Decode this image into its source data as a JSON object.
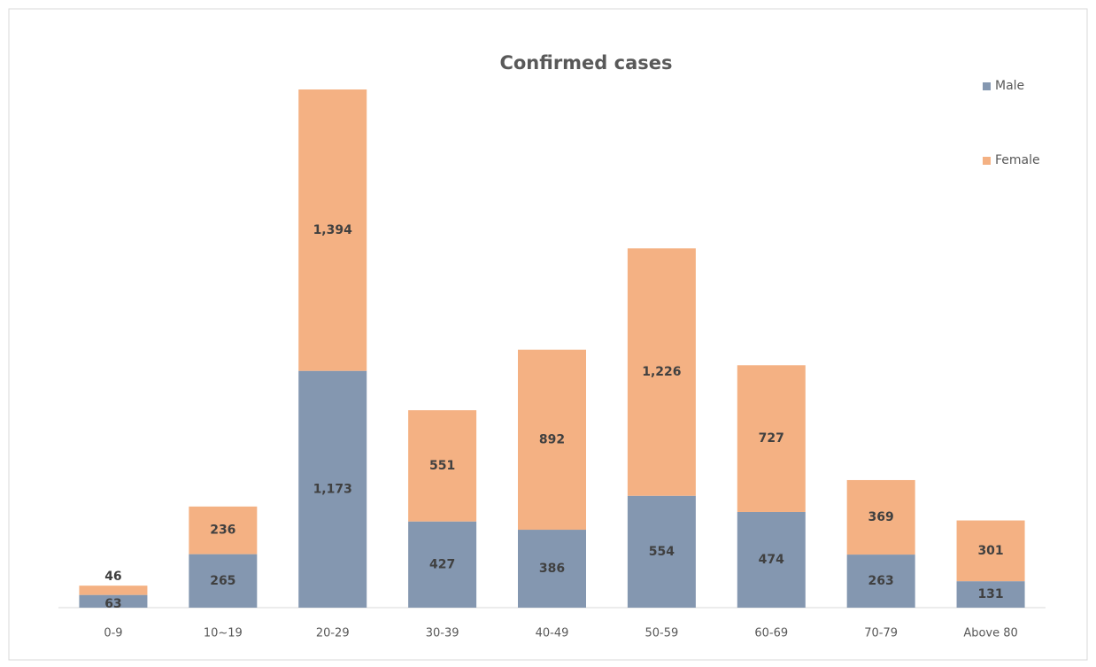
{
  "chart_data": {
    "type": "bar",
    "stacked": true,
    "title": "Confirmed cases",
    "categories": [
      "0-9",
      "10~19",
      "20-29",
      "30-39",
      "40-49",
      "50-59",
      "60-69",
      "70-79",
      "Above 80"
    ],
    "series": [
      {
        "name": "Male",
        "color": "#8497b0",
        "values": [
          63,
          265,
          1173,
          427,
          386,
          554,
          474,
          263,
          131
        ],
        "value_labels": [
          "63",
          "265",
          "1,173",
          "427",
          "386",
          "554",
          "474",
          "263",
          "131"
        ]
      },
      {
        "name": "Female",
        "color": "#f4b183",
        "values": [
          46,
          236,
          1394,
          551,
          892,
          1226,
          727,
          369,
          301
        ],
        "value_labels": [
          "46",
          "236",
          "1,394",
          "551",
          "892",
          "1,226",
          "727",
          "369",
          "301"
        ]
      }
    ],
    "ylim": [
      0,
      2567
    ],
    "legend": "top right"
  }
}
